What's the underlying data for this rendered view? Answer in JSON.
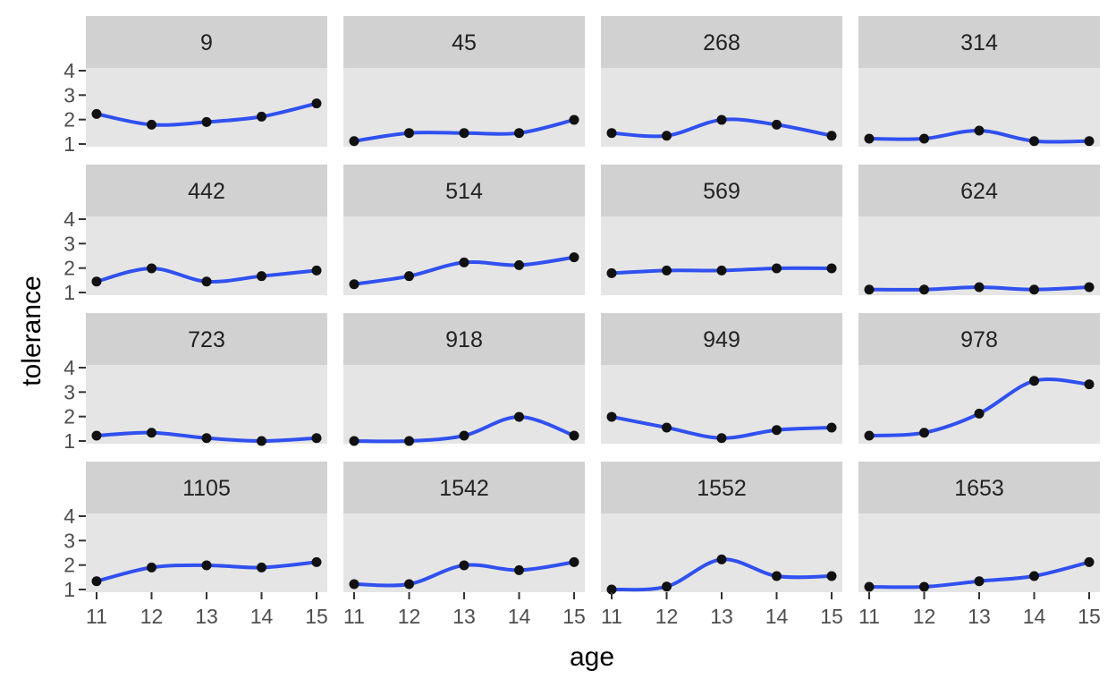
{
  "chart_data": {
    "type": "line",
    "style": "faceted scatter with smooth fit line",
    "xlabel": "age",
    "ylabel": "tolerance",
    "x": [
      11,
      12,
      13,
      14,
      15
    ],
    "x_ticks": [
      "11",
      "12",
      "13",
      "14",
      "15"
    ],
    "y_ticks": [
      "1",
      "2",
      "3",
      "4"
    ],
    "xlim": [
      11,
      15
    ],
    "ylim": [
      1,
      4
    ],
    "grid": false,
    "colors": {
      "panel_bg": "#e5e5e5",
      "strip_bg": "#d1d1d1",
      "line": "#3050f0",
      "point": "#111111",
      "text": "#222222",
      "tick_text": "#4d4d4d"
    },
    "panels": [
      {
        "label": "9",
        "values": [
          2.23,
          1.79,
          1.9,
          2.12,
          2.66
        ]
      },
      {
        "label": "45",
        "values": [
          1.12,
          1.45,
          1.45,
          1.45,
          1.99
        ]
      },
      {
        "label": "268",
        "values": [
          1.45,
          1.34,
          1.99,
          1.79,
          1.34
        ]
      },
      {
        "label": "314",
        "values": [
          1.22,
          1.22,
          1.55,
          1.12,
          1.12
        ]
      },
      {
        "label": "442",
        "values": [
          1.45,
          1.99,
          1.45,
          1.67,
          1.9
        ]
      },
      {
        "label": "514",
        "values": [
          1.34,
          1.67,
          2.23,
          2.12,
          2.44
        ]
      },
      {
        "label": "569",
        "values": [
          1.79,
          1.9,
          1.9,
          1.99,
          1.99
        ]
      },
      {
        "label": "624",
        "values": [
          1.12,
          1.12,
          1.22,
          1.12,
          1.22
        ]
      },
      {
        "label": "723",
        "values": [
          1.22,
          1.34,
          1.12,
          1.0,
          1.12
        ]
      },
      {
        "label": "918",
        "values": [
          1.0,
          1.0,
          1.22,
          1.99,
          1.22
        ]
      },
      {
        "label": "949",
        "values": [
          1.99,
          1.55,
          1.12,
          1.45,
          1.55
        ]
      },
      {
        "label": "978",
        "values": [
          1.22,
          1.34,
          2.12,
          3.46,
          3.32
        ]
      },
      {
        "label": "1105",
        "values": [
          1.34,
          1.9,
          1.99,
          1.9,
          2.12
        ]
      },
      {
        "label": "1542",
        "values": [
          1.22,
          1.22,
          1.99,
          1.79,
          2.12
        ]
      },
      {
        "label": "1552",
        "values": [
          1.0,
          1.12,
          2.23,
          1.55,
          1.55
        ]
      },
      {
        "label": "1653",
        "values": [
          1.11,
          1.11,
          1.34,
          1.55,
          2.12
        ]
      }
    ]
  }
}
